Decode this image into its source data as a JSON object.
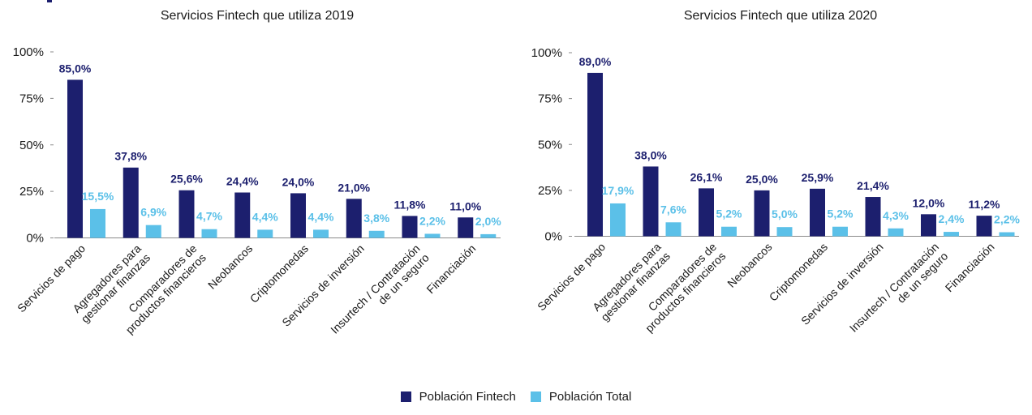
{
  "colors": {
    "fintech": "#1c1f6e",
    "total": "#5bc0e8",
    "axis": "#8a8a8a",
    "text": "#1a1a1a"
  },
  "legend": {
    "fintech_label": "Población Fintech",
    "total_label": "Población Total"
  },
  "chart_data": [
    {
      "type": "bar",
      "title": "Servicios Fintech que utiliza 2019",
      "categories": [
        "Servicios de pago",
        "Agregadores para\ngestionar finanzas",
        "Comparadores de\nproductos financieros",
        "Neobancos",
        "Criptomonedas",
        "Servicios de inversión",
        "Insurtech / Contratación\nde un seguro",
        "Financiación"
      ],
      "ylim": [
        0,
        100
      ],
      "yticks": [
        "0%",
        "25%",
        "50%",
        "75%",
        "100%"
      ],
      "series": [
        {
          "name": "Población Fintech",
          "values": [
            85.0,
            37.8,
            25.6,
            24.4,
            24.0,
            21.0,
            11.8,
            11.0
          ],
          "labels": [
            "85,0%",
            "37,8%",
            "25,6%",
            "24,4%",
            "24,0%",
            "21,0%",
            "11,8%",
            "11,0%"
          ]
        },
        {
          "name": "Población Total",
          "values": [
            15.5,
            6.9,
            4.7,
            4.4,
            4.4,
            3.8,
            2.2,
            2.0
          ],
          "labels": [
            "15,5%",
            "6,9%",
            "4,7%",
            "4,4%",
            "4,4%",
            "3,8%",
            "2,2%",
            "2,0%"
          ]
        }
      ],
      "grid": false,
      "legend": "bottom-center"
    },
    {
      "type": "bar",
      "title": "Servicios Fintech que utiliza 2020",
      "categories": [
        "Servicios de pago",
        "Agregadores para\ngestionar finanzas",
        "Comparadores de\nproductos financieros",
        "Neobancos",
        "Criptomonedas",
        "Servicios de inversión",
        "Insurtech / Contratación\nde un seguro",
        "Financiación"
      ],
      "ylim": [
        0,
        100
      ],
      "yticks": [
        "0%",
        "25%",
        "50%",
        "75%",
        "100%"
      ],
      "series": [
        {
          "name": "Población Fintech",
          "values": [
            89.0,
            38.0,
            26.1,
            25.0,
            25.9,
            21.4,
            12.0,
            11.2
          ],
          "labels": [
            "89,0%",
            "38,0%",
            "26,1%",
            "25,0%",
            "25,9%",
            "21,4%",
            "12,0%",
            "11,2%"
          ]
        },
        {
          "name": "Población Total",
          "values": [
            17.9,
            7.6,
            5.2,
            5.0,
            5.2,
            4.3,
            2.4,
            2.2
          ],
          "labels": [
            "17,9%",
            "7,6%",
            "5,2%",
            "5,0%",
            "5,2%",
            "4,3%",
            "2,4%",
            "2,2%"
          ]
        }
      ],
      "grid": false,
      "legend": "bottom-center"
    }
  ]
}
